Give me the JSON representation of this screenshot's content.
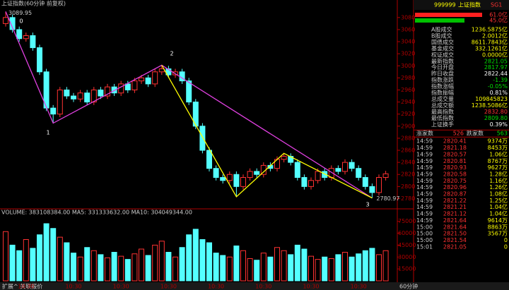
{
  "chart_header": {
    "title": "上证指数(60分钟 前复权)"
  },
  "annotations": {
    "labels": [
      "0",
      "1",
      "2",
      "3"
    ],
    "high_label": "3089.95",
    "low_label": "2780.97"
  },
  "volume_header": {
    "text": "VOLUME: 383108384.00  MA5: 331333632.00  MA10: 304049344.00"
  },
  "chart_data": {
    "type": "candlestick",
    "open": [
      3070,
      3080,
      3060,
      3045,
      3050,
      3030,
      2990,
      2930,
      2920,
      2960,
      2950,
      2945,
      2955,
      2940,
      2960,
      2950,
      2965,
      2955,
      2970,
      2960,
      2975,
      2980,
      2970,
      2990,
      2995,
      2985,
      2990,
      2975,
      2940,
      2900,
      2860,
      2830,
      2815,
      2810,
      2820,
      2800,
      2815,
      2825,
      2820,
      2835,
      2830,
      2845,
      2850,
      2840,
      2815,
      2800,
      2810,
      2825,
      2815,
      2830,
      2825,
      2840,
      2830,
      2815,
      2800,
      2790,
      2815
    ],
    "high": [
      3089.95,
      3085,
      3065,
      3055,
      3055,
      3035,
      2995,
      2935,
      2965,
      2965,
      2955,
      2960,
      2960,
      2965,
      2965,
      2970,
      2970,
      2975,
      2975,
      2980,
      2985,
      2985,
      2995,
      3001,
      3000,
      2995,
      2995,
      2980,
      2945,
      2905,
      2865,
      2835,
      2820,
      2825,
      2825,
      2820,
      2830,
      2830,
      2840,
      2840,
      2850,
      2855,
      2855,
      2845,
      2820,
      2815,
      2830,
      2830,
      2835,
      2835,
      2845,
      2845,
      2835,
      2820,
      2805,
      2820,
      2826
    ],
    "low": [
      3065,
      3055,
      3040,
      3040,
      3025,
      2985,
      2925,
      2905,
      2915,
      2945,
      2940,
      2940,
      2935,
      2935,
      2945,
      2945,
      2950,
      2950,
      2955,
      2955,
      2970,
      2965,
      2965,
      2985,
      2980,
      2980,
      2970,
      2935,
      2895,
      2855,
      2825,
      2810,
      2805,
      2805,
      2783,
      2795,
      2810,
      2815,
      2815,
      2825,
      2825,
      2840,
      2835,
      2810,
      2795,
      2795,
      2805,
      2810,
      2810,
      2820,
      2820,
      2825,
      2810,
      2795,
      2780.97,
      2785,
      2810
    ],
    "close": [
      3080,
      3060,
      3045,
      3050,
      3030,
      2990,
      2930,
      2920,
      2960,
      2950,
      2945,
      2955,
      2940,
      2960,
      2950,
      2965,
      2955,
      2970,
      2960,
      2975,
      2980,
      2970,
      2990,
      2995,
      2985,
      2990,
      2975,
      2940,
      2900,
      2860,
      2830,
      2815,
      2810,
      2820,
      2800,
      2815,
      2825,
      2820,
      2835,
      2830,
      2845,
      2850,
      2840,
      2815,
      2800,
      2810,
      2825,
      2815,
      2830,
      2825,
      2840,
      2830,
      2815,
      2800,
      2790,
      2815,
      2821.05
    ],
    "ylim": [
      2770,
      3095
    ],
    "yticks": [
      2780,
      2800,
      2820,
      2840,
      2860,
      2880,
      2900,
      2920,
      2940,
      2960,
      2980,
      3000,
      3020,
      3040,
      3060,
      3080
    ],
    "up_color": "#ff3232",
    "down_color": "#54ffff",
    "volume": [
      62000,
      45000,
      38000,
      52000,
      41000,
      58000,
      72000,
      66000,
      55000,
      48000,
      35000,
      30000,
      42000,
      38000,
      33000,
      29000,
      36000,
      31000,
      27000,
      34000,
      40000,
      32000,
      45000,
      50000,
      36000,
      30000,
      42000,
      58000,
      65000,
      52000,
      48000,
      35000,
      32000,
      30000,
      44000,
      38000,
      28000,
      26000,
      35000,
      30000,
      42000,
      38000,
      33000,
      45000,
      40000,
      31000,
      27000,
      30000,
      28000,
      33000,
      36000,
      30000,
      34000,
      38000,
      41000,
      33000,
      38000
    ],
    "vlim": [
      0,
      80000
    ],
    "vticks": [
      15000,
      30000,
      45000,
      60000,
      75000
    ],
    "x_labels": [
      "10:30",
      "10:30",
      "10:30",
      "10:30",
      "10:30",
      "10:30",
      "10:30",
      "10:30"
    ]
  },
  "footer": {
    "left": "扩展^  关联报价",
    "period": "60分钟"
  },
  "panel": {
    "code": "999999",
    "name": "上证指数",
    "tag": "SG1",
    "buy_bar": "61.0亿",
    "sell_bar": "45.0亿",
    "rows": [
      {
        "label": "A股成交",
        "value": "1236.5875亿",
        "color": "#ffff00"
      },
      {
        "label": "B股成交",
        "value": "2.0012亿",
        "color": "#ffff00"
      },
      {
        "label": "国债成交",
        "value": "8611.7843亿",
        "color": "#ffff00"
      },
      {
        "label": "基金成交",
        "value": "332.1261亿",
        "color": "#ffff00"
      },
      {
        "label": "权证成交",
        "value": "0.0000亿",
        "color": "#ffff00"
      },
      {
        "label": "最新指数",
        "value": "2821.05",
        "color": "#00e000"
      },
      {
        "label": "今日开盘",
        "value": "2817.97",
        "color": "#00e000"
      },
      {
        "label": "昨日收盘",
        "value": "2822.44",
        "color": "#ffffff"
      },
      {
        "label": "指数涨跌",
        "value": "-1.39",
        "color": "#00e000"
      },
      {
        "label": "指数涨幅",
        "value": "-0.05%",
        "color": "#00e000"
      },
      {
        "label": "指数振幅",
        "value": "0.81%",
        "color": "#ffffff"
      },
      {
        "label": "总成交量",
        "value": "109845823",
        "color": "#ffff00"
      },
      {
        "label": "总成交额",
        "value": "1238.5086亿",
        "color": "#ffff00"
      },
      {
        "label": "最高指数",
        "value": "2832.80",
        "color": "#ff3232"
      },
      {
        "label": "最低指数",
        "value": "2809.80",
        "color": "#00e000"
      },
      {
        "label": "上证换手",
        "value": "0.39%",
        "color": "#ffffff"
      }
    ],
    "adv_label": "涨家数",
    "adv": "526",
    "dec_label": "跌家数",
    "dec": "563",
    "trades": [
      [
        "14:59",
        "2820.41",
        "9374万"
      ],
      [
        "14:59",
        "2821.18",
        "8453万"
      ],
      [
        "14:59",
        "2820.57",
        "1.06亿"
      ],
      [
        "14:59",
        "2820.81",
        "8767万"
      ],
      [
        "14:59",
        "2820.93",
        "9627万"
      ],
      [
        "14:59",
        "2820.58",
        "1.28亿"
      ],
      [
        "14:59",
        "2820.75",
        "1.16亿"
      ],
      [
        "14:59",
        "2820.96",
        "1.26亿"
      ],
      [
        "14:59",
        "2820.87",
        "1.08亿"
      ],
      [
        "14:59",
        "2821.22",
        "1.25亿"
      ],
      [
        "14:59",
        "2821.21",
        "1.04亿"
      ],
      [
        "14:59",
        "2821.12",
        "1.04亿"
      ],
      [
        "14:59",
        "2821.64",
        "9614万"
      ],
      [
        "15:00",
        "2821.64",
        "8863万"
      ],
      [
        "15:00",
        "2821.50",
        "3567万"
      ],
      [
        "15:00",
        "2821.54",
        "0"
      ],
      [
        "15:01",
        "2821.05",
        "0"
      ]
    ]
  }
}
